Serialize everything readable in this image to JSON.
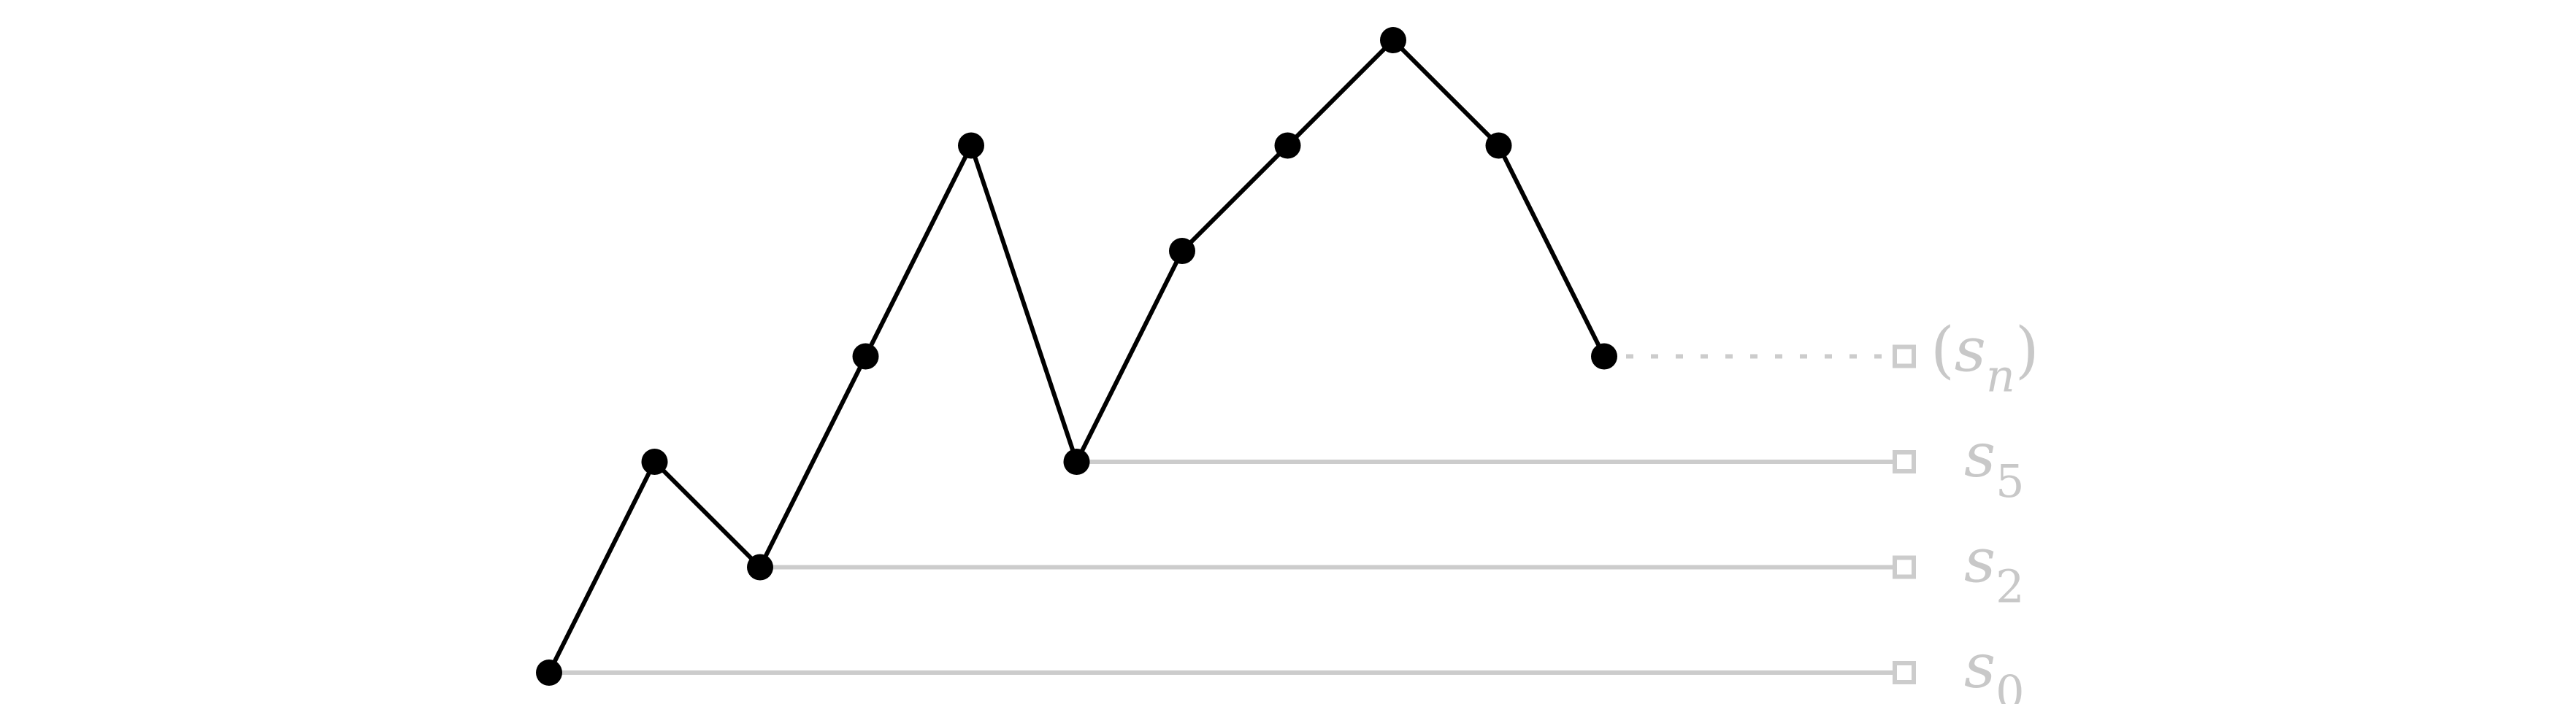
{
  "diagram": {
    "colors": {
      "path": "#000000",
      "guide": "#cccccc",
      "label": "#c8c8c8"
    },
    "points": [
      {
        "x": 0,
        "y": 0
      },
      {
        "x": 1,
        "y": 2
      },
      {
        "x": 2,
        "y": 1
      },
      {
        "x": 3,
        "y": 3
      },
      {
        "x": 4,
        "y": 5
      },
      {
        "x": 5,
        "y": 2
      },
      {
        "x": 6,
        "y": 4
      },
      {
        "x": 7,
        "y": 5
      },
      {
        "x": 8,
        "y": 6
      },
      {
        "x": 9,
        "y": 5
      },
      {
        "x": 10,
        "y": 3
      }
    ],
    "guides": [
      {
        "from_point": 0,
        "style": "solid",
        "label": {
          "base": "s",
          "sub": "0",
          "pre": "",
          "post": ""
        }
      },
      {
        "from_point": 2,
        "style": "solid",
        "label": {
          "base": "s",
          "sub": "2",
          "pre": "",
          "post": ""
        }
      },
      {
        "from_point": 5,
        "style": "solid",
        "label": {
          "base": "s",
          "sub": "5",
          "pre": "",
          "post": ""
        }
      },
      {
        "from_point": 10,
        "style": "dotted",
        "label": {
          "base": "s",
          "sub": "n",
          "pre": "(",
          "post": ")"
        }
      }
    ]
  }
}
